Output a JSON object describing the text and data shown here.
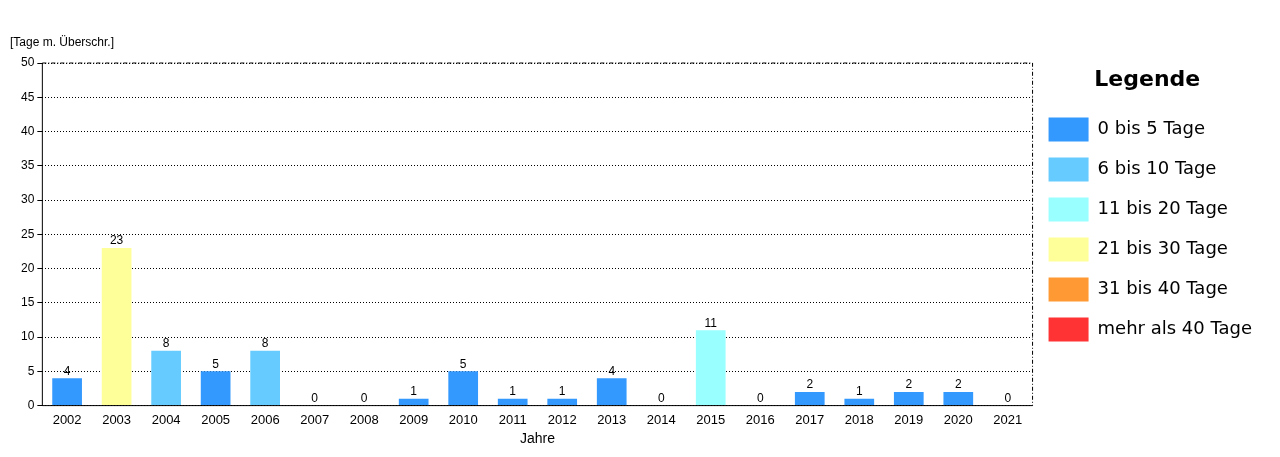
{
  "chart_data": {
    "type": "bar",
    "xlabel": "Jahre",
    "ylabel": "[Tage m. Überschr.]",
    "legend_title": "Legende",
    "legend": "right",
    "stacked": true,
    "grid": "y",
    "data_labels": true,
    "categories": [
      "2002",
      "2003",
      "2004",
      "2005",
      "2006",
      "2007",
      "2008",
      "2009",
      "2010",
      "2011",
      "2012",
      "2013",
      "2014",
      "2015",
      "2016",
      "2017",
      "2018",
      "2019",
      "2020",
      "2021"
    ],
    "ylim": [
      0,
      50
    ],
    "yticks": [
      0,
      5,
      10,
      15,
      20,
      25,
      30,
      35,
      40,
      45,
      50
    ],
    "series": [
      {
        "name": "0 bis 5 Tage",
        "color": "#3399ff",
        "values": [
          4,
          null,
          null,
          5,
          null,
          0,
          0,
          1,
          5,
          1,
          1,
          4,
          0,
          null,
          0,
          2,
          1,
          2,
          2,
          0
        ]
      },
      {
        "name": "6 bis 10 Tage",
        "color": "#66ccff",
        "values": [
          null,
          null,
          8,
          null,
          8,
          null,
          null,
          null,
          null,
          null,
          null,
          null,
          null,
          null,
          null,
          null,
          null,
          null,
          null,
          null
        ]
      },
      {
        "name": "11 bis 20 Tage",
        "color": "#99ffff",
        "values": [
          null,
          null,
          null,
          null,
          null,
          null,
          null,
          null,
          null,
          null,
          null,
          null,
          null,
          11,
          null,
          null,
          null,
          null,
          null,
          null
        ]
      },
      {
        "name": "21 bis 30 Tage",
        "color": "#ffff99",
        "values": [
          null,
          23,
          null,
          null,
          null,
          null,
          null,
          null,
          null,
          null,
          null,
          null,
          null,
          null,
          null,
          null,
          null,
          null,
          null,
          null
        ]
      },
      {
        "name": "31 bis 40 Tage",
        "color": "#ff9933",
        "values": [
          null,
          null,
          null,
          null,
          null,
          null,
          null,
          null,
          null,
          null,
          null,
          null,
          null,
          null,
          null,
          null,
          null,
          null,
          null,
          null
        ]
      },
      {
        "name": "mehr als 40 Tage",
        "color": "#ff3333",
        "values": [
          null,
          null,
          null,
          null,
          null,
          null,
          null,
          null,
          null,
          null,
          null,
          null,
          null,
          null,
          null,
          null,
          null,
          null,
          null,
          null
        ]
      }
    ]
  }
}
